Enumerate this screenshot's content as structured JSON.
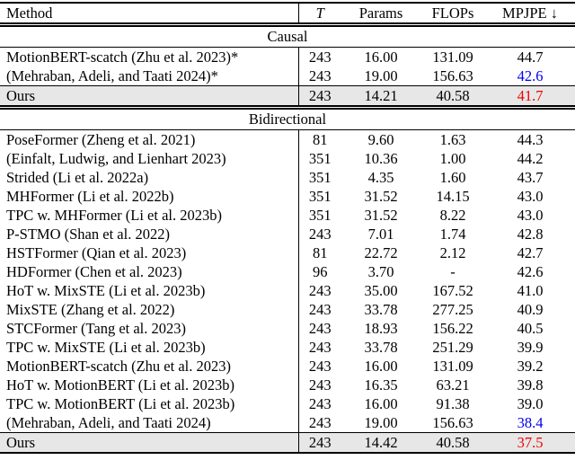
{
  "table": {
    "columns": [
      "Method",
      "T",
      "Params",
      "FLOPs",
      "MPJPE ↓"
    ],
    "colors": {
      "best_red": "#ee0000",
      "second_best_blue": "#0000ee",
      "highlight_bg": "#e7e7e7"
    },
    "sections": [
      {
        "label": "Causal",
        "rows": [
          {
            "method": "MotionBERT-scatch (Zhu et al. 2023)*",
            "t": "243",
            "params": "16.00",
            "flops": "131.09",
            "mpjpe": "44.7",
            "mpjpe_color": "",
            "highlight": false
          },
          {
            "method": "(Mehraban, Adeli, and Taati 2024)*",
            "t": "243",
            "params": "19.00",
            "flops": "156.63",
            "mpjpe": "42.6",
            "mpjpe_color": "blue",
            "highlight": false
          },
          {
            "method": "Ours",
            "t": "243",
            "params": "14.21",
            "flops": "40.58",
            "mpjpe": "41.7",
            "mpjpe_color": "red",
            "highlight": true
          }
        ]
      },
      {
        "label": "Bidirectional",
        "rows": [
          {
            "method": "PoseFormer (Zheng et al. 2021)",
            "t": "81",
            "params": "9.60",
            "flops": "1.63",
            "mpjpe": "44.3",
            "mpjpe_color": "",
            "highlight": false
          },
          {
            "method": "(Einfalt, Ludwig, and Lienhart 2023)",
            "t": "351",
            "params": "10.36",
            "flops": "1.00",
            "mpjpe": "44.2",
            "mpjpe_color": "",
            "highlight": false
          },
          {
            "method": "Strided (Li et al. 2022a)",
            "t": "351",
            "params": "4.35",
            "flops": "1.60",
            "mpjpe": "43.7",
            "mpjpe_color": "",
            "highlight": false
          },
          {
            "method": "MHFormer (Li et al. 2022b)",
            "t": "351",
            "params": "31.52",
            "flops": "14.15",
            "mpjpe": "43.0",
            "mpjpe_color": "",
            "highlight": false
          },
          {
            "method": "TPC w. MHFormer (Li et al. 2023b)",
            "t": "351",
            "params": "31.52",
            "flops": "8.22",
            "mpjpe": "43.0",
            "mpjpe_color": "",
            "highlight": false
          },
          {
            "method": "P-STMO (Shan et al. 2022)",
            "t": "243",
            "params": "7.01",
            "flops": "1.74",
            "mpjpe": "42.8",
            "mpjpe_color": "",
            "highlight": false
          },
          {
            "method": "HSTFormer (Qian et al. 2023)",
            "t": "81",
            "params": "22.72",
            "flops": "2.12",
            "mpjpe": "42.7",
            "mpjpe_color": "",
            "highlight": false
          },
          {
            "method": "HDFormer (Chen et al. 2023)",
            "t": "96",
            "params": "3.70",
            "flops": "-",
            "mpjpe": "42.6",
            "mpjpe_color": "",
            "highlight": false
          },
          {
            "method": "HoT w. MixSTE (Li et al. 2023b)",
            "t": "243",
            "params": "35.00",
            "flops": "167.52",
            "mpjpe": "41.0",
            "mpjpe_color": "",
            "highlight": false
          },
          {
            "method": "MixSTE (Zhang et al. 2022)",
            "t": "243",
            "params": "33.78",
            "flops": "277.25",
            "mpjpe": "40.9",
            "mpjpe_color": "",
            "highlight": false
          },
          {
            "method": "STCFormer (Tang et al. 2023)",
            "t": "243",
            "params": "18.93",
            "flops": "156.22",
            "mpjpe": "40.5",
            "mpjpe_color": "",
            "highlight": false
          },
          {
            "method": "TPC w. MixSTE (Li et al. 2023b)",
            "t": "243",
            "params": "33.78",
            "flops": "251.29",
            "mpjpe": "39.9",
            "mpjpe_color": "",
            "highlight": false
          },
          {
            "method": "MotionBERT-scatch (Zhu et al. 2023)",
            "t": "243",
            "params": "16.00",
            "flops": "131.09",
            "mpjpe": "39.2",
            "mpjpe_color": "",
            "highlight": false
          },
          {
            "method": "HoT w. MotionBERT (Li et al. 2023b)",
            "t": "243",
            "params": "16.35",
            "flops": "63.21",
            "mpjpe": "39.8",
            "mpjpe_color": "",
            "highlight": false
          },
          {
            "method": "TPC w. MotionBERT (Li et al. 2023b)",
            "t": "243",
            "params": "16.00",
            "flops": "91.38",
            "mpjpe": "39.0",
            "mpjpe_color": "",
            "highlight": false
          },
          {
            "method": "(Mehraban, Adeli, and Taati 2024)",
            "t": "243",
            "params": "19.00",
            "flops": "156.63",
            "mpjpe": "38.4",
            "mpjpe_color": "blue",
            "highlight": false
          },
          {
            "method": "Ours",
            "t": "243",
            "params": "14.42",
            "flops": "40.58",
            "mpjpe": "37.5",
            "mpjpe_color": "red",
            "highlight": true
          }
        ]
      }
    ]
  }
}
